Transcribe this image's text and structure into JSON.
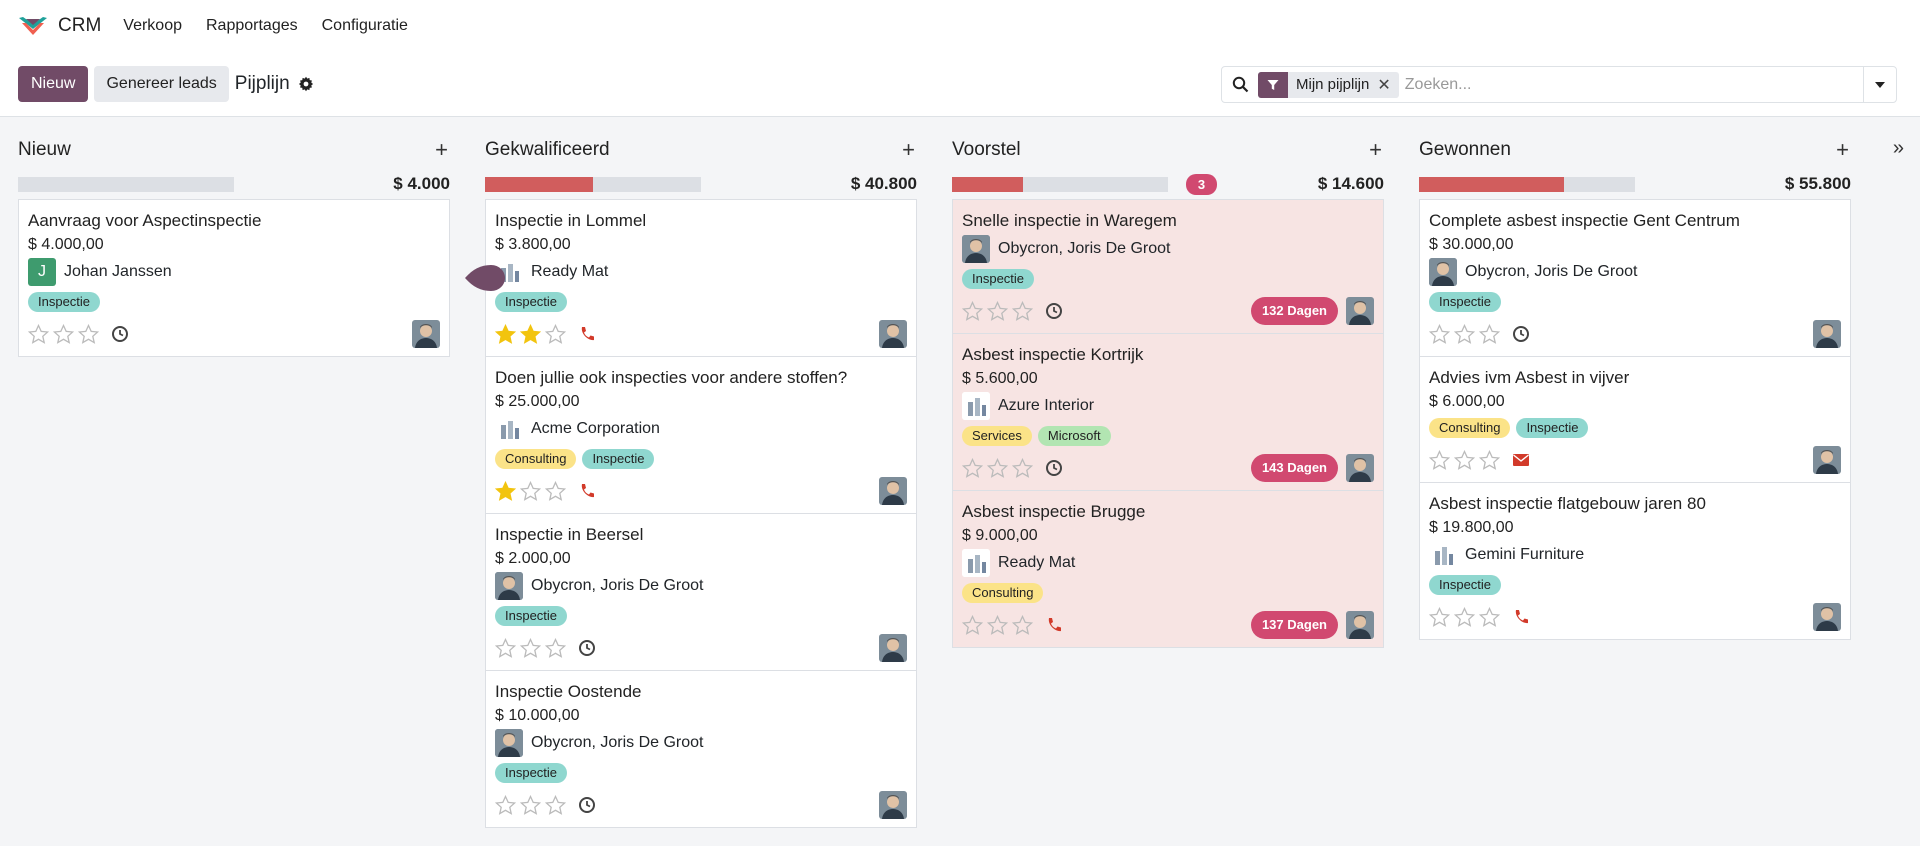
{
  "app": {
    "name": "CRM",
    "menu": [
      "Verkoop",
      "Rapportages",
      "Configuratie"
    ]
  },
  "controls": {
    "new_label": "Nieuw",
    "generate_label": "Genereer leads",
    "breadcrumb": "Pijplijn",
    "facet_label": "Mijn pijplijn",
    "search_placeholder": "Zoeken..."
  },
  "colors": {
    "brand": "#714b67",
    "progress_red": "#d15d5d",
    "badge_pink": "#d14970",
    "tag_teal": "#8fd7cf",
    "tag_yellow": "#fbe388",
    "tag_green": "#b2e5b2",
    "star_gold": "#f2c40f",
    "phone_red": "#d23a2a"
  },
  "columns": [
    {
      "title": "Nieuw",
      "total": "$ 4.000",
      "progress_fraction": 0,
      "badge": "",
      "cards": [
        {
          "title": "Aanvraag voor Aspectinspectie",
          "revenue": "$ 4.000,00",
          "partner": "Johan Janssen",
          "partner_pic": "letter",
          "partner_letter": "J",
          "tags": [
            {
              "label": "Inspectie",
              "color": "teal"
            }
          ],
          "stars": 0,
          "activity": "clock-icon",
          "overdue": "",
          "alert": false
        }
      ]
    },
    {
      "title": "Gekwalificeerd",
      "total": "$ 40.800",
      "progress_fraction": 0.5,
      "badge": "",
      "cards": [
        {
          "title": "Inspectie in Lommel",
          "revenue": "$ 3.800,00",
          "partner": "Ready Mat",
          "partner_pic": "logo",
          "tags": [
            {
              "label": "Inspectie",
              "color": "teal"
            }
          ],
          "stars": 2,
          "activity": "phone-icon",
          "overdue": "",
          "alert": false
        },
        {
          "title": "Doen jullie ook inspecties voor andere stoffen?",
          "revenue": "$ 25.000,00",
          "partner": "Acme Corporation",
          "partner_pic": "logo",
          "tags": [
            {
              "label": "Consulting",
              "color": "yellow"
            },
            {
              "label": "Inspectie",
              "color": "teal"
            }
          ],
          "stars": 1,
          "activity": "phone-icon",
          "overdue": "",
          "alert": false
        },
        {
          "title": "Inspectie in Beersel",
          "revenue": "$ 2.000,00",
          "partner": "Obycron, Joris De Groot",
          "partner_pic": "person",
          "tags": [
            {
              "label": "Inspectie",
              "color": "teal"
            }
          ],
          "stars": 0,
          "activity": "clock-icon",
          "overdue": "",
          "alert": false
        },
        {
          "title": "Inspectie Oostende",
          "revenue": "$ 10.000,00",
          "partner": "Obycron, Joris De Groot",
          "partner_pic": "person",
          "tags": [
            {
              "label": "Inspectie",
              "color": "teal"
            }
          ],
          "stars": 0,
          "activity": "clock-icon",
          "overdue": "",
          "alert": false
        }
      ]
    },
    {
      "title": "Voorstel",
      "total": "$ 14.600",
      "progress_fraction": 0.33,
      "badge": "3",
      "cards": [
        {
          "title": "Snelle inspectie in Waregem",
          "revenue": "",
          "partner": "Obycron, Joris De Groot",
          "partner_pic": "person",
          "tags": [
            {
              "label": "Inspectie",
              "color": "teal"
            }
          ],
          "stars": 0,
          "activity": "clock-icon",
          "overdue": "132 Dagen",
          "alert": true
        },
        {
          "title": "Asbest inspectie Kortrijk",
          "revenue": "$ 5.600,00",
          "partner": "Azure Interior",
          "partner_pic": "logo",
          "tags": [
            {
              "label": "Services",
              "color": "yellow"
            },
            {
              "label": "Microsoft",
              "color": "green"
            }
          ],
          "stars": 0,
          "activity": "clock-icon",
          "overdue": "143 Dagen",
          "alert": true
        },
        {
          "title": "Asbest inspectie Brugge",
          "revenue": "$ 9.000,00",
          "partner": "Ready Mat",
          "partner_pic": "logo",
          "tags": [
            {
              "label": "Consulting",
              "color": "yellow"
            }
          ],
          "stars": 0,
          "activity": "phone-icon",
          "overdue": "137 Dagen",
          "alert": true
        }
      ]
    },
    {
      "title": "Gewonnen",
      "total": "$ 55.800",
      "progress_fraction": 0.67,
      "badge": "",
      "cards": [
        {
          "title": "Complete asbest inspectie Gent Centrum",
          "revenue": "$ 30.000,00",
          "partner": "Obycron, Joris De Groot",
          "partner_pic": "person",
          "tags": [
            {
              "label": "Inspectie",
              "color": "teal"
            }
          ],
          "stars": 0,
          "activity": "clock-icon",
          "overdue": "",
          "alert": false
        },
        {
          "title": "Advies ivm Asbest in vijver",
          "revenue": "$ 6.000,00",
          "partner": "",
          "partner_pic": "",
          "tags": [
            {
              "label": "Consulting",
              "color": "yellow"
            },
            {
              "label": "Inspectie",
              "color": "teal"
            }
          ],
          "stars": 0,
          "activity": "envelope-icon",
          "overdue": "",
          "alert": false
        },
        {
          "title": "Asbest inspectie flatgebouw jaren 80",
          "revenue": "$ 19.800,00",
          "partner": "Gemini Furniture",
          "partner_pic": "logo",
          "tags": [
            {
              "label": "Inspectie",
              "color": "teal"
            }
          ],
          "stars": 0,
          "activity": "phone-icon",
          "overdue": "",
          "alert": false
        }
      ]
    }
  ]
}
